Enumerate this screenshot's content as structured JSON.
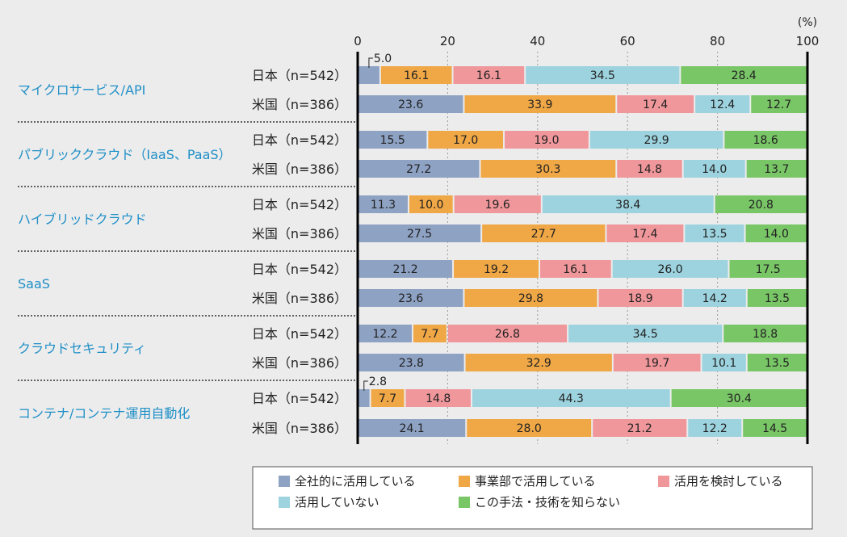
{
  "chart_data": {
    "type": "bar",
    "orientation": "horizontal-stacked-100",
    "unit": "(%)",
    "xlim": [
      0,
      100
    ],
    "xticks": [
      "0",
      "20",
      "40",
      "60",
      "80",
      "100"
    ],
    "series": [
      {
        "name": "全社的に活用している",
        "color": "#8ea2c4"
      },
      {
        "name": "事業部で活用している",
        "color": "#f0a745"
      },
      {
        "name": "活用を検討している",
        "color": "#f0979b"
      },
      {
        "name": "活用していない",
        "color": "#9dd3df"
      },
      {
        "name": "この手法・技術を知らない",
        "color": "#79c667"
      }
    ],
    "groups": [
      {
        "category": "マイクロサービス/API",
        "rows": [
          {
            "label": "日本（n=542）",
            "values": [
              5.0,
              16.1,
              16.1,
              34.5,
              28.4
            ]
          },
          {
            "label": "米国（n=386）",
            "values": [
              23.6,
              33.9,
              17.4,
              12.4,
              12.7
            ]
          }
        ]
      },
      {
        "category": "パブリッククラウド（IaaS、PaaS）",
        "rows": [
          {
            "label": "日本（n=542）",
            "values": [
              15.5,
              17.0,
              19.0,
              29.9,
              18.6
            ]
          },
          {
            "label": "米国（n=386）",
            "values": [
              27.2,
              30.3,
              14.8,
              14.0,
              13.7
            ]
          }
        ]
      },
      {
        "category": "ハイブリッドクラウド",
        "rows": [
          {
            "label": "日本（n=542）",
            "values": [
              11.3,
              10.0,
              19.6,
              38.4,
              20.8
            ]
          },
          {
            "label": "米国（n=386）",
            "values": [
              27.5,
              27.7,
              17.4,
              13.5,
              14.0
            ]
          }
        ]
      },
      {
        "category": "SaaS",
        "rows": [
          {
            "label": "日本（n=542）",
            "values": [
              21.2,
              19.2,
              16.1,
              26.0,
              17.5
            ]
          },
          {
            "label": "米国（n=386）",
            "values": [
              23.6,
              29.8,
              18.9,
              14.2,
              13.5
            ]
          }
        ]
      },
      {
        "category": "クラウドセキュリティ",
        "rows": [
          {
            "label": "日本（n=542）",
            "values": [
              12.2,
              7.7,
              26.8,
              34.5,
              18.8
            ]
          },
          {
            "label": "米国（n=386）",
            "values": [
              23.8,
              32.9,
              19.7,
              10.1,
              13.5
            ]
          }
        ]
      },
      {
        "category": "コンテナ/コンテナ運用自動化",
        "rows": [
          {
            "label": "日本（n=542）",
            "values": [
              2.8,
              7.7,
              14.8,
              44.3,
              30.4
            ]
          },
          {
            "label": "米国（n=386）",
            "values": [
              24.1,
              28.0,
              21.2,
              12.2,
              14.5
            ]
          }
        ]
      }
    ]
  }
}
